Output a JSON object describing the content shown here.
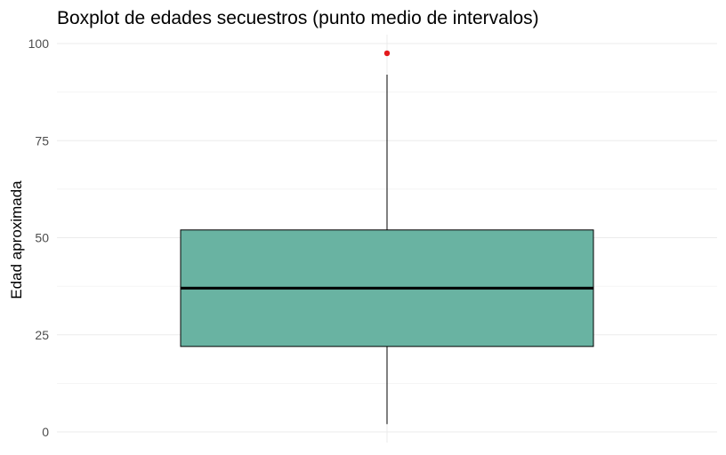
{
  "chart_data": {
    "type": "boxplot",
    "title": "Boxplot de edades secuestros (punto medio de intervalos)",
    "xlabel": "",
    "ylabel": "Edad aproximada",
    "ylim": [
      0,
      100
    ],
    "yticks": [
      0,
      25,
      50,
      75,
      100
    ],
    "grid": true,
    "box": {
      "min": 2,
      "q1": 22,
      "median": 37,
      "q3": 52,
      "max": 92,
      "outliers": [
        97.5
      ]
    },
    "colors": {
      "box_fill": "#69b3a2",
      "outlier": "#e31a1c",
      "grid": "#ebebeb",
      "line": "#000000"
    }
  }
}
